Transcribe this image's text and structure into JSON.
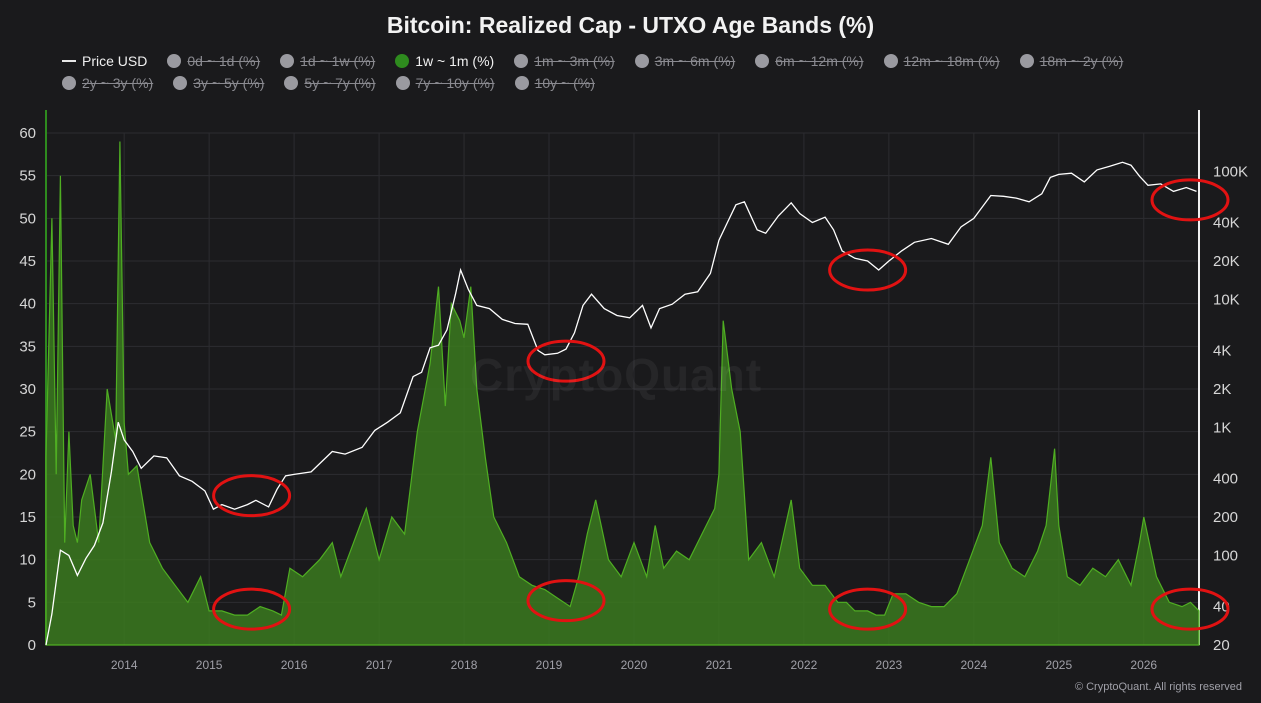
{
  "title": "Bitcoin: Realized Cap - UTXO Age Bands (%)",
  "legend": [
    {
      "label": "Price USD",
      "kind": "line",
      "active": true
    },
    {
      "label": "0d ~ 1d (%)",
      "kind": "dot",
      "active": false
    },
    {
      "label": "1d ~ 1w (%)",
      "kind": "dot",
      "active": false
    },
    {
      "label": "1w ~ 1m (%)",
      "kind": "dot",
      "active": true,
      "color": "#2e8b1e"
    },
    {
      "label": "1m ~ 3m (%)",
      "kind": "dot",
      "active": false
    },
    {
      "label": "3m ~ 6m (%)",
      "kind": "dot",
      "active": false
    },
    {
      "label": "6m ~ 12m (%)",
      "kind": "dot",
      "active": false
    },
    {
      "label": "12m ~ 18m (%)",
      "kind": "dot",
      "active": false
    },
    {
      "label": "18m ~ 2y (%)",
      "kind": "dot",
      "active": false
    },
    {
      "label": "2y ~ 3y (%)",
      "kind": "dot",
      "active": false
    },
    {
      "label": "3y ~ 5y (%)",
      "kind": "dot",
      "active": false
    },
    {
      "label": "5y ~ 7y (%)",
      "kind": "dot",
      "active": false
    },
    {
      "label": "7y ~ 10y (%)",
      "kind": "dot",
      "active": false
    },
    {
      "label": "10y ~ (%)",
      "kind": "dot",
      "active": false
    }
  ],
  "watermark": "CryptoQuant",
  "credit": "© CryptoQuant. All rights reserved",
  "colors": {
    "background": "#1a1a1c",
    "area_fill": "#3b7a1f",
    "area_stroke": "#4fae22",
    "price_line": "#ffffff",
    "grid": "#2c2c30",
    "highlight_circle": "#e11212"
  },
  "chart_data": {
    "type": "area",
    "left_axis": {
      "ticks": [
        0,
        5,
        10,
        15,
        20,
        25,
        30,
        35,
        40,
        45,
        50,
        55,
        60
      ],
      "range": [
        0,
        60
      ]
    },
    "right_axis": {
      "scale": "log",
      "ticks": [
        20,
        40,
        100,
        200,
        400,
        1000,
        2000,
        4000,
        10000,
        20000,
        40000,
        100000
      ],
      "tick_labels": [
        "20",
        "40",
        "100",
        "200",
        "400",
        "1K",
        "2K",
        "4K",
        "10K",
        "20K",
        "40K",
        "100K"
      ],
      "range": [
        20,
        200000
      ]
    },
    "x_axis": {
      "ticks": [
        2014,
        2015,
        2016,
        2017,
        2018,
        2019,
        2020,
        2021,
        2022,
        2023,
        2024,
        2025,
        2026
      ],
      "range": [
        2013.08,
        2026.65
      ]
    },
    "series": [
      {
        "name": "1w ~ 1m (%)",
        "axis": "left",
        "x": [
          2013.08,
          2013.15,
          2013.2,
          2013.25,
          2013.3,
          2013.35,
          2013.4,
          2013.45,
          2013.5,
          2013.6,
          2013.7,
          2013.8,
          2013.9,
          2013.95,
          2014.0,
          2014.05,
          2014.15,
          2014.3,
          2014.45,
          2014.6,
          2014.75,
          2014.9,
          2015.0,
          2015.15,
          2015.3,
          2015.45,
          2015.6,
          2015.75,
          2015.85,
          2015.95,
          2016.1,
          2016.3,
          2016.45,
          2016.55,
          2016.7,
          2016.85,
          2017.0,
          2017.15,
          2017.3,
          2017.45,
          2017.6,
          2017.7,
          2017.78,
          2017.85,
          2017.95,
          2018.0,
          2018.08,
          2018.15,
          2018.25,
          2018.35,
          2018.5,
          2018.65,
          2018.8,
          2018.95,
          2019.1,
          2019.25,
          2019.35,
          2019.45,
          2019.55,
          2019.7,
          2019.85,
          2020.0,
          2020.15,
          2020.25,
          2020.35,
          2020.5,
          2020.65,
          2020.8,
          2020.95,
          2021.0,
          2021.05,
          2021.15,
          2021.25,
          2021.35,
          2021.5,
          2021.65,
          2021.85,
          2021.95,
          2022.1,
          2022.25,
          2022.4,
          2022.5,
          2022.6,
          2022.75,
          2022.85,
          2022.95,
          2023.05,
          2023.2,
          2023.35,
          2023.5,
          2023.65,
          2023.8,
          2023.95,
          2024.1,
          2024.2,
          2024.3,
          2024.45,
          2024.6,
          2024.75,
          2024.85,
          2024.95,
          2025.0,
          2025.1,
          2025.25,
          2025.4,
          2025.55,
          2025.7,
          2025.85,
          2025.95,
          2026.0,
          2026.15,
          2026.3,
          2026.45,
          2026.55,
          2026.65
        ],
        "y": [
          22,
          50,
          20,
          55,
          12,
          25,
          14,
          12,
          17,
          20,
          12,
          30,
          24,
          59,
          26,
          20,
          21,
          12,
          9,
          7,
          5,
          8,
          4,
          4,
          3.5,
          3.5,
          4.5,
          4,
          3.5,
          9,
          8,
          10,
          12,
          8,
          12,
          16,
          10,
          15,
          13,
          25,
          33,
          42,
          28,
          40,
          38,
          36,
          42,
          30,
          22,
          15,
          12,
          8,
          7,
          6.5,
          5.5,
          4.5,
          8,
          13,
          17,
          10,
          8,
          12,
          8,
          14,
          9,
          11,
          10,
          13,
          16,
          20,
          38,
          30,
          25,
          10,
          12,
          8,
          17,
          9,
          7,
          7,
          5,
          5,
          4,
          4,
          3.5,
          3.5,
          6,
          6,
          5,
          4.5,
          4.5,
          6,
          10,
          14,
          22,
          12,
          9,
          8,
          11,
          14,
          23,
          14,
          8,
          7,
          9,
          8,
          10,
          7,
          12,
          15,
          8,
          5,
          4.5,
          5,
          4
        ],
        "color": "#3b7a1f"
      },
      {
        "name": "Price USD",
        "axis": "right",
        "x": [
          2013.08,
          2013.15,
          2013.25,
          2013.35,
          2013.45,
          2013.55,
          2013.65,
          2013.75,
          2013.85,
          2013.93,
          2014.0,
          2014.1,
          2014.2,
          2014.35,
          2014.5,
          2014.65,
          2014.8,
          2014.95,
          2015.05,
          2015.15,
          2015.3,
          2015.45,
          2015.55,
          2015.7,
          2015.8,
          2015.9,
          2016.0,
          2016.2,
          2016.45,
          2016.6,
          2016.8,
          2016.95,
          2017.1,
          2017.25,
          2017.4,
          2017.5,
          2017.6,
          2017.7,
          2017.8,
          2017.9,
          2017.96,
          2018.05,
          2018.15,
          2018.3,
          2018.45,
          2018.6,
          2018.75,
          2018.87,
          2018.95,
          2019.1,
          2019.2,
          2019.3,
          2019.4,
          2019.5,
          2019.65,
          2019.8,
          2019.95,
          2020.1,
          2020.2,
          2020.3,
          2020.45,
          2020.6,
          2020.75,
          2020.9,
          2021.0,
          2021.1,
          2021.2,
          2021.3,
          2021.45,
          2021.55,
          2021.7,
          2021.85,
          2021.95,
          2022.1,
          2022.25,
          2022.35,
          2022.45,
          2022.6,
          2022.75,
          2022.88,
          2023.0,
          2023.15,
          2023.3,
          2023.5,
          2023.7,
          2023.85,
          2024.0,
          2024.2,
          2024.35,
          2024.5,
          2024.65,
          2024.8,
          2024.9,
          2025.0,
          2025.15,
          2025.3,
          2025.45,
          2025.6,
          2025.75,
          2025.85,
          2025.95,
          2026.05,
          2026.2,
          2026.35,
          2026.5,
          2026.62
        ],
        "y": [
          20,
          35,
          110,
          100,
          70,
          95,
          120,
          180,
          450,
          1100,
          800,
          650,
          480,
          600,
          580,
          420,
          380,
          320,
          230,
          250,
          230,
          250,
          270,
          240,
          330,
          420,
          430,
          450,
          650,
          620,
          700,
          950,
          1100,
          1300,
          2500,
          2700,
          4200,
          4400,
          5800,
          11000,
          17000,
          12000,
          9000,
          8500,
          7000,
          6500,
          6400,
          4000,
          3700,
          3800,
          4100,
          5500,
          9000,
          11000,
          8500,
          7500,
          7200,
          9000,
          6000,
          8500,
          9200,
          11000,
          11500,
          16000,
          29000,
          40000,
          55000,
          58000,
          35000,
          33000,
          45000,
          57000,
          47000,
          40000,
          44000,
          35000,
          24000,
          21000,
          20000,
          17000,
          20000,
          24000,
          28000,
          30000,
          27000,
          37000,
          43000,
          65000,
          64000,
          62000,
          58000,
          67000,
          90000,
          95000,
          97000,
          83000,
          103000,
          110000,
          118000,
          112000,
          92000,
          78000,
          80000,
          70000,
          75000,
          70000
        ],
        "color": "#ffffff"
      }
    ],
    "highlights": [
      {
        "x": 2015.5,
        "axis": "left",
        "y": 17.5
      },
      {
        "x": 2015.5,
        "axis": "left",
        "y": 4.2
      },
      {
        "x": 2019.2,
        "axis": "right",
        "y": 3300
      },
      {
        "x": 2019.2,
        "axis": "left",
        "y": 5.2
      },
      {
        "x": 2022.75,
        "axis": "right",
        "y": 17000
      },
      {
        "x": 2022.75,
        "axis": "left",
        "y": 4.2
      },
      {
        "x": 2026.6,
        "axis": "right",
        "y": 60000
      },
      {
        "x": 2026.6,
        "axis": "left",
        "y": 4.2
      }
    ]
  }
}
